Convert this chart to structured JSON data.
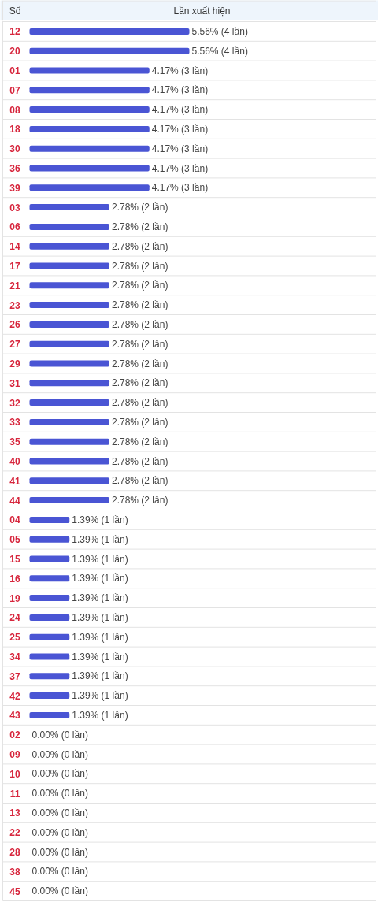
{
  "chart_data": {
    "type": "bar",
    "orientation": "horizontal",
    "xlabel": "Lần xuất hiện",
    "ylabel": "Số",
    "color": "#4a55d4",
    "categories": [
      "12",
      "20",
      "01",
      "07",
      "08",
      "18",
      "30",
      "36",
      "39",
      "03",
      "06",
      "14",
      "17",
      "21",
      "23",
      "26",
      "27",
      "29",
      "31",
      "32",
      "33",
      "35",
      "40",
      "41",
      "44",
      "04",
      "05",
      "15",
      "16",
      "19",
      "24",
      "25",
      "34",
      "37",
      "42",
      "43",
      "02",
      "09",
      "10",
      "11",
      "13",
      "22",
      "28",
      "38",
      "45"
    ],
    "values": [
      5.56,
      5.56,
      4.17,
      4.17,
      4.17,
      4.17,
      4.17,
      4.17,
      4.17,
      2.78,
      2.78,
      2.78,
      2.78,
      2.78,
      2.78,
      2.78,
      2.78,
      2.78,
      2.78,
      2.78,
      2.78,
      2.78,
      2.78,
      2.78,
      2.78,
      1.39,
      1.39,
      1.39,
      1.39,
      1.39,
      1.39,
      1.39,
      1.39,
      1.39,
      1.39,
      1.39,
      0,
      0,
      0,
      0,
      0,
      0,
      0,
      0,
      0
    ],
    "value_labels": [
      "5.56% (4 lần)",
      "5.56% (4 lần)",
      "4.17% (3 lần)",
      "4.17% (3 lần)",
      "4.17% (3 lần)",
      "4.17% (3 lần)",
      "4.17% (3 lần)",
      "4.17% (3 lần)",
      "4.17% (3 lần)",
      "2.78% (2 lần)",
      "2.78% (2 lần)",
      "2.78% (2 lần)",
      "2.78% (2 lần)",
      "2.78% (2 lần)",
      "2.78% (2 lần)",
      "2.78% (2 lần)",
      "2.78% (2 lần)",
      "2.78% (2 lần)",
      "2.78% (2 lần)",
      "2.78% (2 lần)",
      "2.78% (2 lần)",
      "2.78% (2 lần)",
      "2.78% (2 lần)",
      "2.78% (2 lần)",
      "2.78% (2 lần)",
      "1.39% (1 lần)",
      "1.39% (1 lần)",
      "1.39% (1 lần)",
      "1.39% (1 lần)",
      "1.39% (1 lần)",
      "1.39% (1 lần)",
      "1.39% (1 lần)",
      "1.39% (1 lần)",
      "1.39% (1 lần)",
      "1.39% (1 lần)",
      "1.39% (1 lần)",
      "0.00% (0 lần)",
      "0.00% (0 lần)",
      "0.00% (0 lần)",
      "0.00% (0 lần)",
      "0.00% (0 lần)",
      "0.00% (0 lần)",
      "0.00% (0 lần)",
      "0.00% (0 lần)",
      "0.00% (0 lần)"
    ]
  }
}
